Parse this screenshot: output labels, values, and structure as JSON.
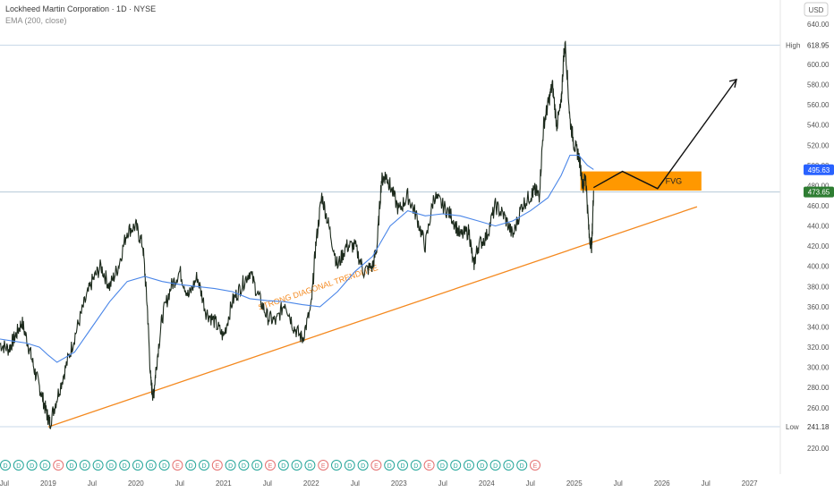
{
  "header": {
    "title": "Lockheed Martin Corporation · 1D · NYSE",
    "indicator": "EMA (200, close)"
  },
  "currency": "USD",
  "price_labels": {
    "high_label": "High",
    "high_value": "618.95",
    "low_label": "Low",
    "low_value": "241.18",
    "ema_value": "495.63",
    "last_value": "473.65"
  },
  "annotations": {
    "trendline": "STRONG DIAGONAL TRENDLINE",
    "zone": "FVG"
  },
  "colors": {
    "candle": "#1c2a1c",
    "ema": "#4a86e8",
    "trendline": "#f4891f",
    "fvg": "#ff9800",
    "last_tag": "#2e7d32",
    "ema_tag": "#2962ff"
  },
  "event_marker_text": "D",
  "event_marker_alt_text": "E",
  "chart_data": {
    "type": "line",
    "title": "Lockheed Martin Corporation · 1D · NYSE",
    "x_ticks": [
      "Jul",
      "2019",
      "Jul",
      "2020",
      "Jul",
      "2021",
      "Jul",
      "2022",
      "Jul",
      "2023",
      "Jul",
      "2024",
      "Jul",
      "2025",
      "Jul",
      "2026",
      "Jul",
      "2027"
    ],
    "y_ticks": [
      220,
      240,
      260,
      280,
      300,
      320,
      340,
      360,
      380,
      400,
      420,
      440,
      460,
      480,
      500,
      520,
      540,
      560,
      580,
      600,
      620,
      640
    ],
    "ylim": [
      212,
      646
    ],
    "xlim": [
      2018.45,
      2027.35
    ],
    "series": [
      {
        "name": "price",
        "x": [
          2018.45,
          2018.55,
          2018.62,
          2018.7,
          2018.78,
          2018.85,
          2018.92,
          2018.98,
          2019.02,
          2019.1,
          2019.2,
          2019.3,
          2019.4,
          2019.5,
          2019.6,
          2019.7,
          2019.8,
          2019.9,
          2020.0,
          2020.08,
          2020.13,
          2020.17,
          2020.2,
          2020.23,
          2020.3,
          2020.4,
          2020.5,
          2020.6,
          2020.7,
          2020.8,
          2020.9,
          2021.0,
          2021.1,
          2021.2,
          2021.3,
          2021.4,
          2021.5,
          2021.6,
          2021.7,
          2021.8,
          2021.9,
          2022.0,
          2022.05,
          2022.12,
          2022.2,
          2022.3,
          2022.4,
          2022.5,
          2022.6,
          2022.7,
          2022.75,
          2022.8,
          2022.85,
          2022.9,
          2023.0,
          2023.1,
          2023.2,
          2023.3,
          2023.4,
          2023.5,
          2023.6,
          2023.7,
          2023.8,
          2023.85,
          2023.9,
          2024.0,
          2024.1,
          2024.2,
          2024.3,
          2024.4,
          2024.5,
          2024.55,
          2024.6,
          2024.65,
          2024.7,
          2024.75,
          2024.8,
          2024.85,
          2024.88,
          2024.9,
          2024.95,
          2025.0,
          2025.05,
          2025.1,
          2025.13,
          2025.17,
          2025.2,
          2025.22
        ],
        "values": [
          323,
          318,
          330,
          345,
          320,
          295,
          275,
          255,
          245,
          270,
          300,
          330,
          360,
          385,
          400,
          380,
          400,
          435,
          440,
          420,
          360,
          285,
          270,
          300,
          350,
          380,
          395,
          370,
          390,
          355,
          345,
          330,
          365,
          380,
          395,
          370,
          350,
          345,
          365,
          340,
          328,
          360,
          420,
          470,
          440,
          400,
          420,
          420,
          395,
          400,
          420,
          485,
          490,
          480,
          455,
          470,
          450,
          420,
          470,
          460,
          450,
          430,
          435,
          400,
          420,
          430,
          460,
          450,
          430,
          460,
          470,
          475,
          470,
          540,
          560,
          580,
          540,
          560,
          610,
          618,
          545,
          520,
          510,
          480,
          490,
          430,
          420,
          475
        ],
        "color": "#1c2a1c"
      },
      {
        "name": "EMA (200, close)",
        "x": [
          2018.45,
          2018.6,
          2018.75,
          2018.9,
          2019.0,
          2019.1,
          2019.3,
          2019.5,
          2019.7,
          2019.9,
          2020.1,
          2020.3,
          2020.5,
          2020.7,
          2020.9,
          2021.1,
          2021.3,
          2021.5,
          2021.7,
          2021.9,
          2022.1,
          2022.3,
          2022.5,
          2022.7,
          2022.9,
          2023.1,
          2023.3,
          2023.5,
          2023.7,
          2023.9,
          2024.1,
          2024.3,
          2024.5,
          2024.7,
          2024.85,
          2024.95,
          2025.05,
          2025.15,
          2025.22
        ],
        "values": [
          328,
          326,
          324,
          320,
          312,
          305,
          315,
          340,
          365,
          385,
          390,
          385,
          382,
          380,
          378,
          375,
          368,
          366,
          365,
          362,
          360,
          375,
          395,
          410,
          440,
          455,
          450,
          452,
          450,
          445,
          440,
          445,
          455,
          468,
          490,
          510,
          510,
          500,
          496
        ],
        "color": "#4a86e8"
      }
    ],
    "ylabel": "",
    "xlabel": ""
  },
  "drawings": {
    "trendline": {
      "x1": 2019.0,
      "y1": 241,
      "x2": 2026.4,
      "y2": 459
    },
    "fvg": {
      "x1": 2025.07,
      "x2": 2026.45,
      "y_low": 475,
      "y_high": 494
    },
    "projection": {
      "x": [
        2025.22,
        2025.55,
        2025.95,
        2026.85
      ],
      "y": [
        478,
        494,
        477,
        585
      ]
    }
  }
}
